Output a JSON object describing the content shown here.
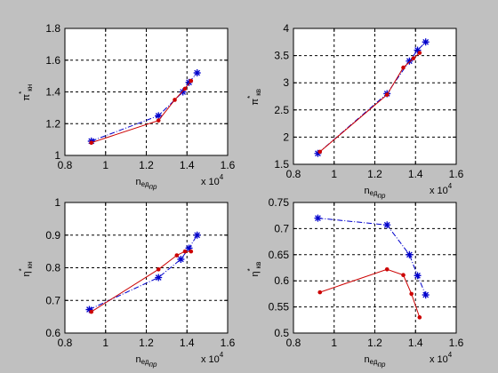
{
  "colors": {
    "figure_bg": "#c0c0c0",
    "axes_bg": "#ffffff",
    "series_blue": "#0000cc",
    "series_red": "#cc0000",
    "grid": "#000000"
  },
  "chart_data": [
    {
      "type": "line",
      "xlabel": {
        "main": "n",
        "sub1": "ед",
        "sub2": "пр"
      },
      "ylabel": {
        "main": "π",
        "sup": "*",
        "sub": "кн"
      },
      "x_multiplier": "x 10",
      "x_multiplier_exp": "4",
      "xlim": [
        0.8,
        1.6
      ],
      "ylim": [
        1.0,
        1.8
      ],
      "xticks": [
        "0.8",
        "1",
        "1.2",
        "1.4",
        "1.6"
      ],
      "yticks": [
        "1",
        "1.2",
        "1.4",
        "1.6",
        "1.8"
      ],
      "grid": true,
      "series": [
        {
          "color": "#0000cc",
          "line": "dash-dot",
          "marker": "star",
          "x": [
            0.93,
            1.26,
            1.38,
            1.41,
            1.45
          ],
          "y": [
            1.09,
            1.25,
            1.4,
            1.46,
            1.52
          ]
        },
        {
          "color": "#cc0000",
          "line": "solid",
          "marker": "dot",
          "x": [
            0.93,
            1.26,
            1.34,
            1.39,
            1.42
          ],
          "y": [
            1.08,
            1.22,
            1.35,
            1.42,
            1.47
          ]
        }
      ]
    },
    {
      "type": "line",
      "xlabel": {
        "main": "n",
        "sub1": "ед",
        "sub2": "пр"
      },
      "ylabel": {
        "main": "π",
        "sup": "*",
        "sub": "кв"
      },
      "x_multiplier": "x 10",
      "x_multiplier_exp": "4",
      "xlim": [
        0.8,
        1.6
      ],
      "ylim": [
        1.5,
        4.0
      ],
      "xticks": [
        "0.8",
        "1",
        "1.2",
        "1.4",
        "1.6"
      ],
      "yticks": [
        "1.5",
        "2",
        "2.5",
        "3",
        "3.5",
        "4"
      ],
      "grid": true,
      "series": [
        {
          "color": "#0000cc",
          "line": "dash-dot",
          "marker": "star",
          "x": [
            0.92,
            1.26,
            1.37,
            1.41,
            1.45
          ],
          "y": [
            1.7,
            2.8,
            3.4,
            3.6,
            3.75
          ]
        },
        {
          "color": "#cc0000",
          "line": "solid",
          "marker": "dot",
          "x": [
            0.93,
            1.26,
            1.34,
            1.39,
            1.42
          ],
          "y": [
            1.73,
            2.78,
            3.28,
            3.45,
            3.55
          ]
        }
      ]
    },
    {
      "type": "line",
      "xlabel": {
        "main": "n",
        "sub1": "ед",
        "sub2": "пр"
      },
      "ylabel": {
        "main": "η",
        "sup": "*",
        "sub": "кн"
      },
      "x_multiplier": "x 10",
      "x_multiplier_exp": "4",
      "xlim": [
        0.8,
        1.6
      ],
      "ylim": [
        0.6,
        1.0
      ],
      "xticks": [
        "0.8",
        "1",
        "1.2",
        "1.4",
        "1.6"
      ],
      "yticks": [
        "0.6",
        "0.7",
        "0.8",
        "0.9",
        "1"
      ],
      "grid": true,
      "series": [
        {
          "color": "#0000cc",
          "line": "dash-dot",
          "marker": "star",
          "x": [
            0.92,
            1.26,
            1.37,
            1.41,
            1.45
          ],
          "y": [
            0.672,
            0.77,
            0.826,
            0.86,
            0.9
          ]
        },
        {
          "color": "#cc0000",
          "line": "solid",
          "marker": "dot",
          "x": [
            0.93,
            1.26,
            1.35,
            1.39,
            1.42
          ],
          "y": [
            0.665,
            0.795,
            0.838,
            0.85,
            0.85
          ]
        }
      ]
    },
    {
      "type": "line",
      "xlabel": {
        "main": "n",
        "sub1": "ед",
        "sub2": "пр"
      },
      "ylabel": {
        "main": "η",
        "sup": "*",
        "sub": "кв"
      },
      "x_multiplier": "x 10",
      "x_multiplier_exp": "4",
      "xlim": [
        0.8,
        1.6
      ],
      "ylim": [
        0.5,
        0.75
      ],
      "xticks": [
        "0.8",
        "1",
        "1.2",
        "1.4",
        "1.6"
      ],
      "yticks": [
        "0.5",
        "0.55",
        "0.6",
        "0.65",
        "0.7",
        "0.75"
      ],
      "grid": true,
      "series": [
        {
          "color": "#0000cc",
          "line": "dash-dot",
          "marker": "star",
          "x": [
            0.92,
            1.26,
            1.37,
            1.41,
            1.45
          ],
          "y": [
            0.72,
            0.707,
            0.65,
            0.61,
            0.573
          ]
        },
        {
          "color": "#cc0000",
          "line": "solid",
          "marker": "dot",
          "x": [
            0.93,
            1.26,
            1.34,
            1.38,
            1.42
          ],
          "y": [
            0.578,
            0.622,
            0.611,
            0.575,
            0.53
          ]
        }
      ]
    }
  ]
}
